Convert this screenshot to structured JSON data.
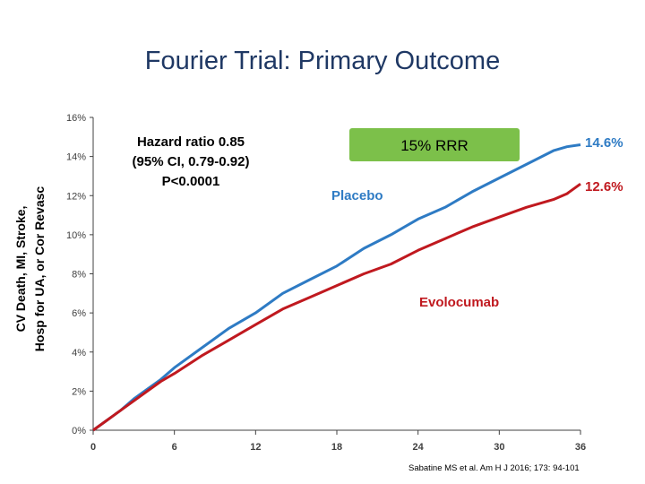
{
  "slide": {
    "title": "Fourier Trial: Primary Outcome",
    "citation": "Sabatine MS et al. Am H J 2016; 173: 94-101"
  },
  "chart_data": {
    "type": "line",
    "title": "Fourier Trial: Primary Outcome",
    "xlabel": "",
    "ylabel_lines": [
      "CV Death, MI, Stroke,",
      "Hosp for UA, or Cor Revasc"
    ],
    "xlim": [
      0,
      36
    ],
    "ylim": [
      0,
      16
    ],
    "x_ticks": [
      0,
      6,
      12,
      18,
      24,
      30,
      36
    ],
    "x_tick_labels": [
      "0",
      "6",
      "12",
      "18",
      "24",
      "30",
      "36"
    ],
    "y_ticks": [
      0,
      2,
      4,
      6,
      8,
      10,
      12,
      14,
      16
    ],
    "y_tick_labels": [
      "0%",
      "2%",
      "4%",
      "6%",
      "8%",
      "10%",
      "12%",
      "14%",
      "16%"
    ],
    "series": [
      {
        "name": "Placebo",
        "color": "#2e7bc4",
        "end_label": "14.6%",
        "x": [
          0,
          1,
          2,
          3,
          4,
          5,
          6,
          8,
          10,
          12,
          14,
          16,
          18,
          20,
          22,
          24,
          26,
          28,
          30,
          32,
          34,
          35,
          36
        ],
        "y": [
          0,
          0.5,
          1.0,
          1.6,
          2.1,
          2.6,
          3.2,
          4.2,
          5.2,
          6.0,
          7.0,
          7.7,
          8.4,
          9.3,
          10.0,
          10.8,
          11.4,
          12.2,
          12.9,
          13.6,
          14.3,
          14.5,
          14.6
        ]
      },
      {
        "name": "Evolocumab",
        "color": "#c0191f",
        "end_label": "12.6%",
        "x": [
          0,
          1,
          2,
          3,
          4,
          5,
          6,
          8,
          10,
          12,
          14,
          16,
          18,
          20,
          22,
          24,
          26,
          28,
          30,
          32,
          34,
          35,
          36
        ],
        "y": [
          0,
          0.5,
          1.0,
          1.5,
          2.0,
          2.5,
          2.9,
          3.8,
          4.6,
          5.4,
          6.2,
          6.8,
          7.4,
          8.0,
          8.5,
          9.2,
          9.8,
          10.4,
          10.9,
          11.4,
          11.8,
          12.1,
          12.6
        ]
      }
    ],
    "annotations": {
      "hazard_lines": [
        "Hazard ratio 0.85",
        "(95% CI, 0.79-0.92)",
        "P<0.0001"
      ],
      "rrr_label": "15% RRR",
      "rrr_box_fill": "#7cc04a",
      "placebo_label": "Placebo",
      "evolocumab_label": "Evolocumab"
    },
    "grid": false,
    "legend": "inline labels"
  }
}
